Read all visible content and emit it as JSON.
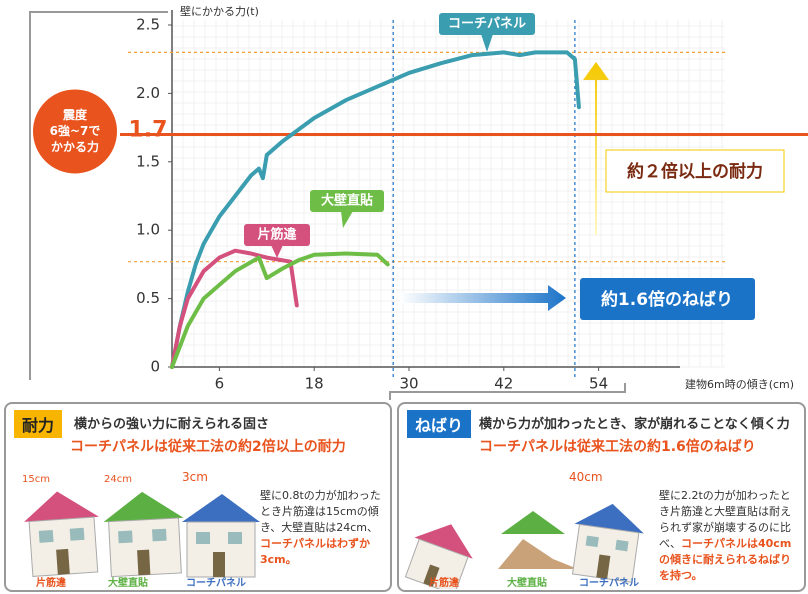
{
  "chart_data": {
    "type": "line",
    "ylabel": "壁にかかる力(t)",
    "xlabel": "建物6m時の傾き(cm)",
    "xlim": [
      0,
      70
    ],
    "ylim": [
      0,
      2.5
    ],
    "xticks": [
      6,
      18,
      30,
      42,
      54
    ],
    "yticks": [
      0,
      0.5,
      {
        "value": 1,
        "label": "1.0"
      },
      1.5,
      {
        "value": 2,
        "label": "2.0"
      },
      2.5
    ],
    "series": [
      {
        "name": "コーチパネル",
        "color": "#3a9db0",
        "x": [
          0,
          1,
          2,
          3,
          4,
          6,
          8,
          10,
          11,
          11.5,
          12,
          14,
          18,
          22,
          26,
          30,
          34,
          38,
          42,
          44,
          46,
          48,
          50,
          51,
          51.5
        ],
        "values": [
          0,
          0.3,
          0.55,
          0.75,
          0.9,
          1.1,
          1.25,
          1.4,
          1.45,
          1.38,
          1.55,
          1.65,
          1.82,
          1.95,
          2.05,
          2.15,
          2.22,
          2.28,
          2.3,
          2.28,
          2.3,
          2.3,
          2.3,
          2.25,
          1.9
        ]
      },
      {
        "name": "片筋違",
        "color": "#d4507d",
        "x": [
          0,
          1,
          2,
          4,
          6,
          8,
          10,
          12,
          14,
          15,
          15.8
        ],
        "values": [
          0,
          0.3,
          0.5,
          0.7,
          0.8,
          0.85,
          0.83,
          0.8,
          0.78,
          0.77,
          0.45
        ]
      },
      {
        "name": "大壁直貼",
        "color": "#6ebd46",
        "x": [
          0,
          2,
          4,
          6,
          8,
          11,
          12,
          14,
          16,
          18,
          22,
          26,
          27.3
        ],
        "values": [
          0,
          0.3,
          0.5,
          0.6,
          0.7,
          0.8,
          0.65,
          0.72,
          0.78,
          0.82,
          0.83,
          0.82,
          0.75
        ]
      }
    ],
    "reference_line": {
      "value": 1.7,
      "label": "1.7",
      "color": "#e8531e",
      "note": [
        "震度",
        "6強~7で",
        "かかる力"
      ]
    },
    "guide_hlines": [
      2.3,
      0.77
    ],
    "guide_vlines": [
      28,
      51
    ],
    "annotations": [
      "約２倍以上の耐力",
      "約1.6倍のねばり"
    ]
  },
  "panels": [
    {
      "badge": "耐力",
      "title": "横からの強い力に耐えられる固さ",
      "subtitle": "コーチパネルは従来工法の約2倍以上の耐力",
      "measures": [
        "15cm",
        "24cm",
        "3cm"
      ],
      "text": [
        "壁に0.8tの力が加わったとき片筋違は15cmの傾き、大壁直貼は24cm、",
        "コーチパネルはわずか3cm。"
      ],
      "captions": [
        "片筋違",
        "大壁直貼",
        "コーチパネル"
      ]
    },
    {
      "badge": "ねばり",
      "title": "横から力が加わったとき、家が崩れることなく傾く力",
      "subtitle": "コーチパネルは従来工法の約1.6倍のねばり",
      "measures": [
        "40cm"
      ],
      "text": [
        "壁に2.2tの力が加わったとき片筋違と大壁直貼は耐えられず家が崩壊するのに比べ、",
        "コーチパネルは40cmの傾きに耐えられるねばりを持つ。"
      ],
      "captions": [
        "片筋違",
        "大壁直貼",
        "コーチパネル"
      ]
    }
  ]
}
